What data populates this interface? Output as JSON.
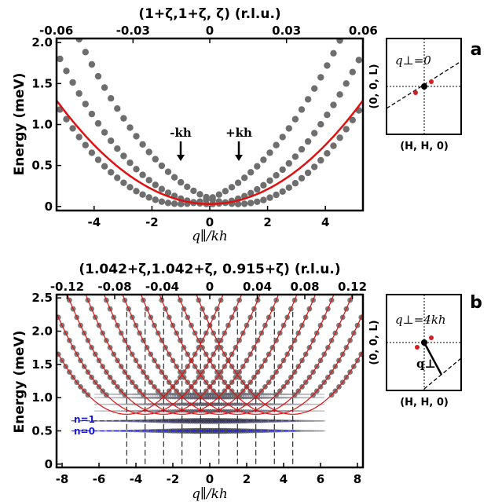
{
  "panel_a": {
    "label": "a",
    "top_title": "(1+ζ,1+ζ, ζ) (r.l.u.)",
    "top_ticks": [
      "-0.06",
      "-0.03",
      "0",
      "0.03",
      "0.06"
    ],
    "ylabel": "Energy (meV)",
    "xlabel": "q∥/kh",
    "arrow_minus": "-kh",
    "arrow_plus": "+kh",
    "inset": {
      "text": "q⊥=0",
      "ylabel": "(0, 0, L)",
      "xlabel": "(H, H, 0)"
    }
  },
  "panel_b": {
    "label": "b",
    "top_title": "(1.042+ζ,1.042+ζ, 0.915+ζ) (r.l.u.)",
    "top_ticks": [
      "-0.12",
      "-0.08",
      "-0.04",
      "0",
      "0.04",
      "0.08",
      "0.12"
    ],
    "ylabel": "Energy (meV)",
    "xlabel": "q∥/kh",
    "level_labels": [
      "n=1",
      "n=0"
    ],
    "inset": {
      "text": "q⊥=4kh",
      "vec": "q⊥",
      "ylabel": "(0, 0, L)",
      "xlabel": "(H, H, 0)"
    }
  },
  "colors": {
    "dots": "#6e6e6e",
    "fit": "#e01010",
    "levels": "#1a1ad0"
  },
  "chart_data": [
    {
      "type": "scatter",
      "panel": "a",
      "xlim": [
        -5.3,
        5.3
      ],
      "ylim": [
        -0.05,
        2.05
      ],
      "x_ticks": [
        -4,
        -2,
        0,
        2,
        4
      ],
      "y_ticks": [
        0,
        0.5,
        1.0,
        1.5,
        2.0
      ],
      "y_tick_labels": [
        "0",
        "0.5",
        "1.0",
        "1.5",
        "2.0"
      ],
      "dispersion": {
        "kh": 1,
        "E0": 0.03,
        "coef": 0.066
      },
      "series": [
        {
          "branch": "centered at -kh",
          "shift": -1
        },
        {
          "branch": "centered at 0",
          "shift": 0
        },
        {
          "branch": "centered at +kh",
          "shift": 1
        }
      ],
      "fit": {
        "shift": 0,
        "coef": 0.045,
        "E0": 0.03
      }
    },
    {
      "type": "scatter",
      "panel": "b",
      "xlim": [
        -8.3,
        8.3
      ],
      "ylim": [
        -0.05,
        2.55
      ],
      "x_ticks": [
        -8,
        -6,
        -4,
        -2,
        0,
        2,
        4,
        6,
        8
      ],
      "y_ticks": [
        0,
        0.5,
        1.0,
        1.5,
        2.0,
        2.5
      ],
      "y_tick_labels": [
        "0",
        "0.5",
        "1.0",
        "1.5",
        "2.0",
        "2.5"
      ],
      "dashed_x": [
        -4.5,
        -3.5,
        -2.5,
        -1.5,
        -0.5,
        0.5,
        1.5,
        2.5,
        3.5,
        4.5
      ],
      "levels": [
        0.5,
        0.65,
        0.8,
        0.9,
        1.0,
        1.05
      ],
      "curve_centers": [
        -4.5,
        -3.5,
        -2.5,
        -1.5,
        -0.5,
        0.5,
        1.5,
        2.5,
        3.5,
        4.5
      ],
      "curve_min": 0.75,
      "curve_coef": 0.066
    }
  ]
}
